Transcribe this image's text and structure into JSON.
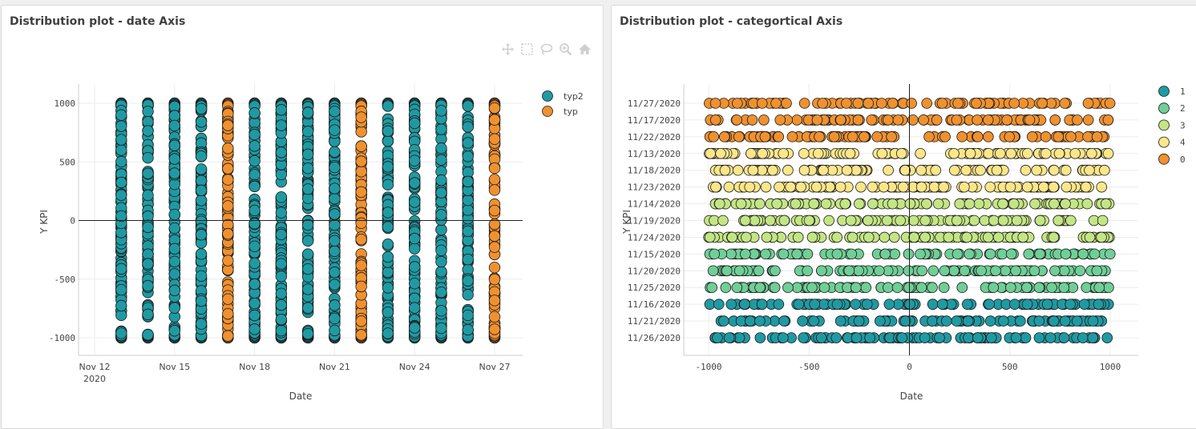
{
  "panels": [
    {
      "title": "Distribution plot - date Axis",
      "toolbar": {
        "icons": [
          "move-icon",
          "box-select-icon",
          "lasso-icon",
          "zoom-icon",
          "home-icon"
        ]
      }
    },
    {
      "title": "Distribution plot - categortical Axis"
    }
  ],
  "chart_data": [
    {
      "type": "scatter",
      "xlabel": "Date",
      "ylabel": "Y KPI",
      "x_ticks": [
        "Nov 12\n2020",
        "Nov 15",
        "Nov 18",
        "Nov 21",
        "Nov 24",
        "Nov 27"
      ],
      "y_ticks": [
        1000,
        500,
        0,
        -500,
        -1000
      ],
      "ylim": [
        -1000,
        1000
      ],
      "zero_line": true,
      "grid": true,
      "legend_position": "top-right",
      "series": [
        {
          "name": "typ2",
          "color": "#1f9aa3",
          "x": [
            "2020-11-13",
            "2020-11-14",
            "2020-11-15",
            "2020-11-16",
            "2020-11-18",
            "2020-11-19",
            "2020-11-20",
            "2020-11-21",
            "2020-11-23",
            "2020-11-24",
            "2020-11-25",
            "2020-11-26"
          ]
        },
        {
          "name": "typ",
          "color": "#f0912f",
          "x": [
            "2020-11-17",
            "2020-11-22",
            "2020-11-27"
          ]
        }
      ]
    },
    {
      "type": "scatter",
      "xlabel": "Date",
      "ylabel": "Y KPI",
      "x_ticks": [
        -1000,
        -500,
        0,
        500,
        1000
      ],
      "xlim": [
        -1000,
        1000
      ],
      "zero_line": true,
      "grid": true,
      "legend_position": "top-right",
      "categories": [
        "11/27/2020",
        "11/17/2020",
        "11/22/2020",
        "11/13/2020",
        "11/18/2020",
        "11/23/2020",
        "11/14/2020",
        "11/19/2020",
        "11/24/2020",
        "11/15/2020",
        "11/20/2020",
        "11/25/2020",
        "11/16/2020",
        "11/21/2020",
        "11/26/2020"
      ],
      "category_group": [
        "0",
        "0",
        "0",
        "4",
        "4",
        "4",
        "3",
        "3",
        "3",
        "2",
        "2",
        "2",
        "1",
        "1",
        "1"
      ],
      "series": [
        {
          "name": "1",
          "color": "#1f9aa3"
        },
        {
          "name": "2",
          "color": "#6fcf97"
        },
        {
          "name": "3",
          "color": "#c4e584"
        },
        {
          "name": "4",
          "color": "#fbe68a"
        },
        {
          "name": "0",
          "color": "#f0912f"
        }
      ]
    }
  ]
}
